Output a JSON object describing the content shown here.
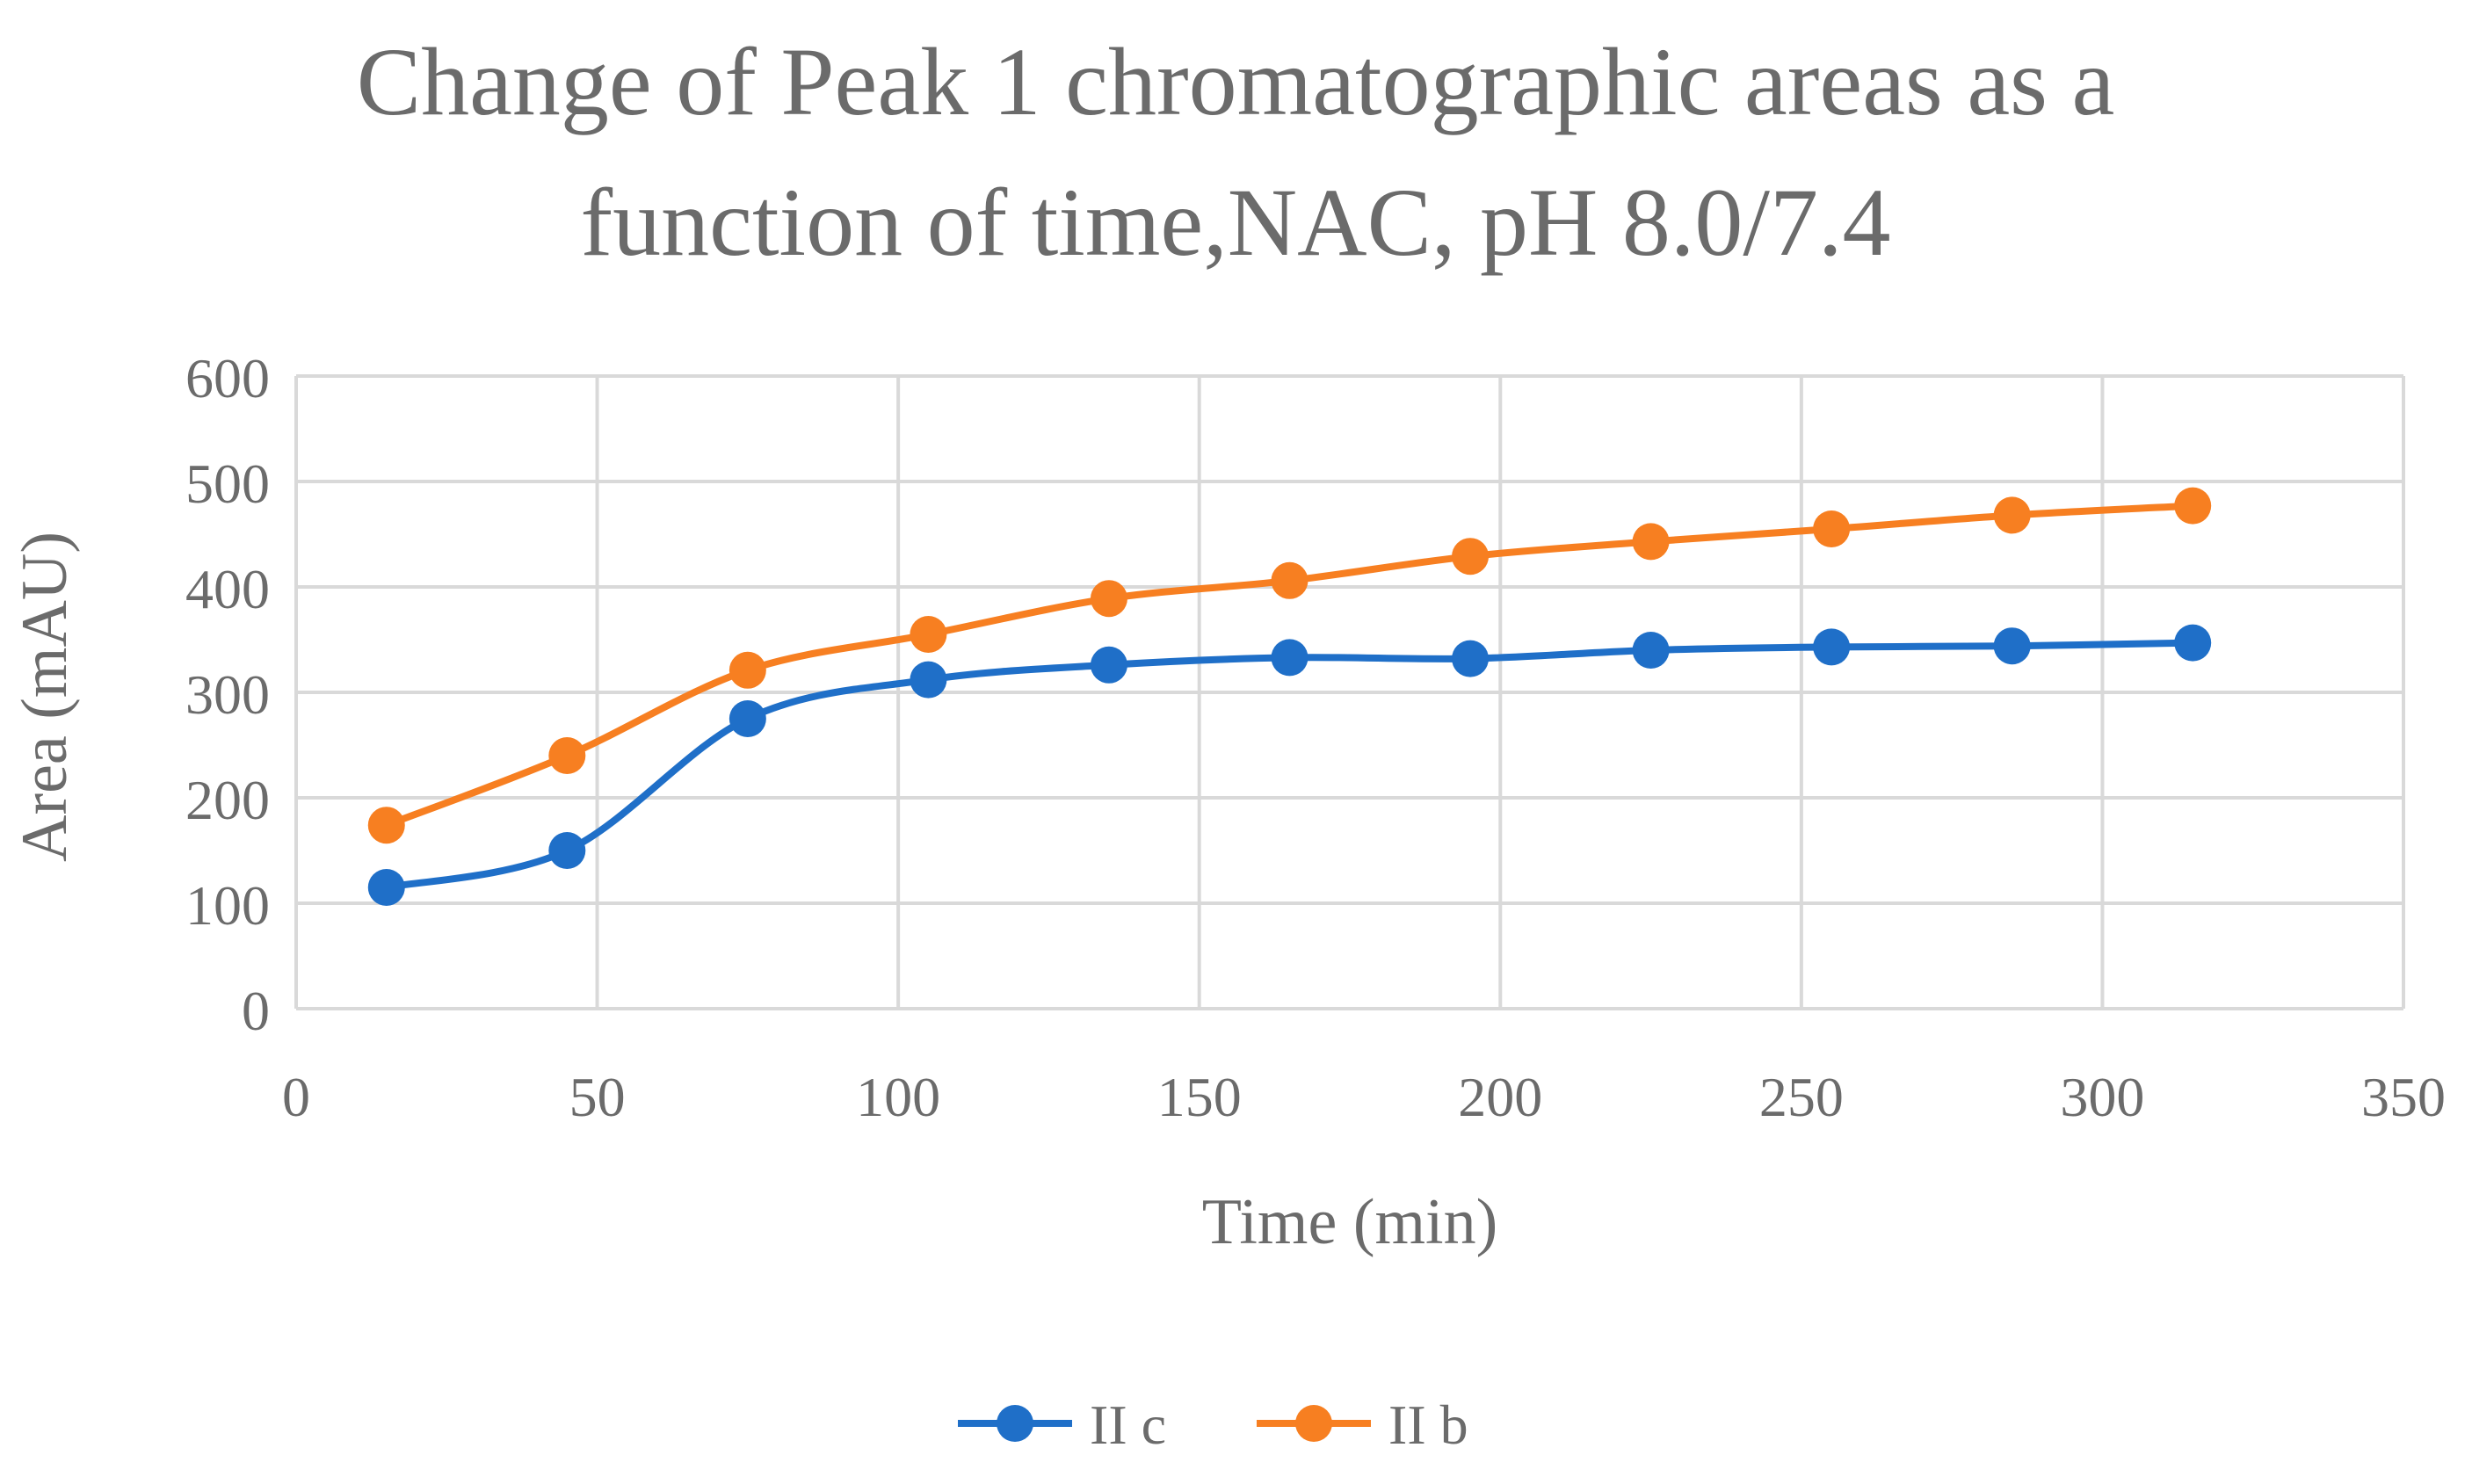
{
  "chart_data": {
    "type": "line",
    "title_lines": [
      "Change of Peak 1 chromatographic areas as a",
      "function of time,NAC, pH 8.0/7.4"
    ],
    "xlabel": "Time (min)",
    "ylabel": "Area (mAU)",
    "xlim": [
      0,
      350
    ],
    "ylim": [
      0,
      600
    ],
    "x_ticks": [
      0,
      50,
      100,
      150,
      200,
      250,
      300,
      350
    ],
    "y_ticks": [
      0,
      100,
      200,
      300,
      400,
      500,
      600
    ],
    "x_tick_labels": [
      "0",
      "50",
      "100",
      "150",
      "200",
      "250",
      "300",
      "350"
    ],
    "y_tick_labels": [
      "0",
      "100",
      "200",
      "300",
      "400",
      "500",
      "600"
    ],
    "grid": true,
    "smooth": true,
    "legend_position": "bottom",
    "x": [
      15,
      45,
      75,
      105,
      135,
      165,
      195,
      225,
      255,
      285,
      315
    ],
    "series": [
      {
        "name": "II c",
        "color": "#1f6fc8",
        "values": [
          115,
          150,
          275,
          312,
          326,
          333,
          332,
          340,
          343,
          344,
          347
        ]
      },
      {
        "name": "II b",
        "color": "#f77f21",
        "values": [
          174,
          240,
          321,
          355,
          389,
          406,
          429,
          443,
          455,
          468,
          477
        ]
      }
    ]
  }
}
